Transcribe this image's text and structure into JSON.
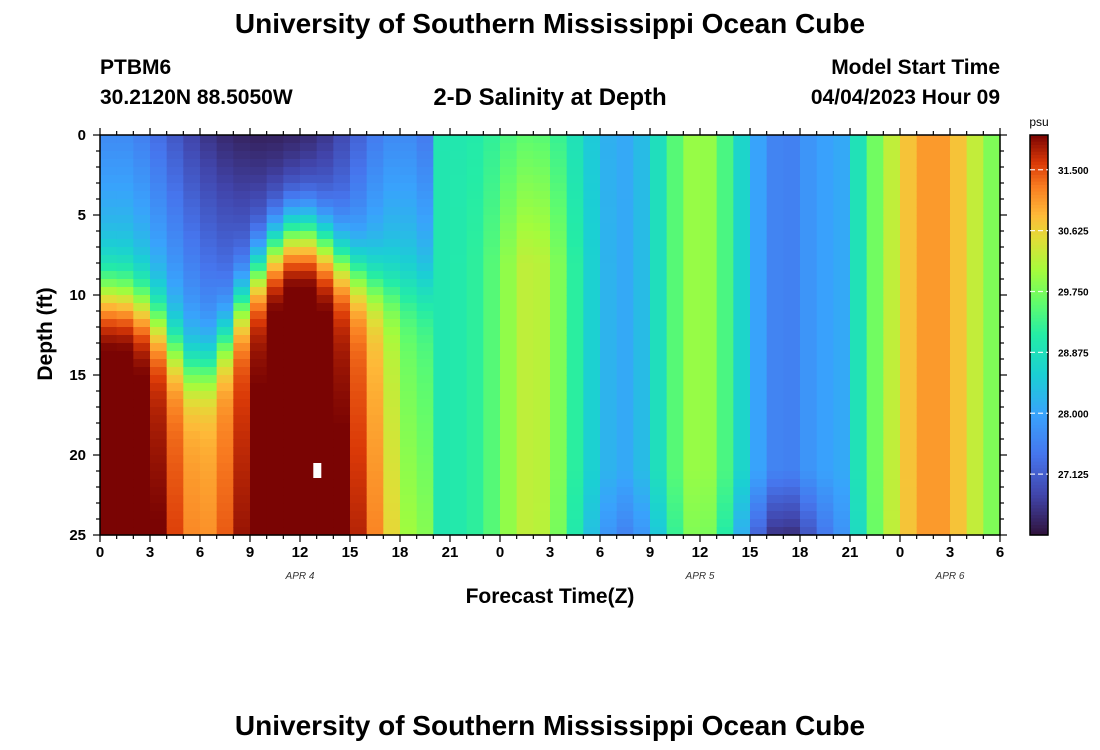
{
  "page_title": "University of Southern Mississippi Ocean Cube",
  "footer_title": "University of Southern Mississippi Ocean Cube",
  "station": {
    "id": "PTBM6",
    "coords": "30.2120N  88.5050W"
  },
  "plot_title": "2-D Salinity at Depth",
  "model_start": {
    "label": "Model Start Time",
    "value": "04/04/2023 Hour 09"
  },
  "chart_data": {
    "type": "heatmap",
    "title": "2-D Salinity at Depth",
    "xlabel": "Forecast Time(Z)",
    "ylabel": "Depth (ft)",
    "x_range_hours": [
      0,
      54
    ],
    "y_range_ft": [
      0,
      25
    ],
    "x_tick_labels": [
      "0",
      "3",
      "6",
      "9",
      "12",
      "15",
      "18",
      "21",
      "0",
      "3",
      "6",
      "9",
      "12",
      "15",
      "18",
      "21",
      "0",
      "3",
      "6"
    ],
    "y_tick_labels": [
      "0",
      "5",
      "10",
      "15",
      "20",
      "25"
    ],
    "date_labels": [
      {
        "text": "APR 4",
        "hour": 12
      },
      {
        "text": "APR 5",
        "hour": 36
      },
      {
        "text": "APR 6",
        "hour": 51
      }
    ],
    "colorbar": {
      "unit": "psu",
      "min": 26.25,
      "max": 32.0,
      "tick_values": [
        27.125,
        28.0,
        28.875,
        29.75,
        30.625,
        31.5
      ],
      "tick_labels": [
        "27.125",
        "28.000",
        "28.875",
        "29.750",
        "30.625",
        "31.500"
      ]
    },
    "field_features": [
      {
        "feature": "fresh surface layer",
        "hours": [
          0,
          18
        ],
        "depth_ft": [
          0,
          9
        ],
        "psu": 26.4
      },
      {
        "feature": "salty bottom layer",
        "hours": [
          0,
          4
        ],
        "depth_ft": [
          12,
          25
        ],
        "psu": 31.8
      },
      {
        "feature": "salty bottom core",
        "hours": [
          10,
          14
        ],
        "depth_ft": [
          15,
          24
        ],
        "psu": 32.0
      },
      {
        "feature": "salty column",
        "hours": [
          25,
          27
        ],
        "depth_ft": [
          8,
          25
        ],
        "psu": 30.4
      },
      {
        "feature": "fresh column",
        "hours": [
          30,
          32
        ],
        "depth_ft": [
          0,
          25
        ],
        "psu": 28.2
      },
      {
        "feature": "salty column",
        "hours": [
          35,
          37
        ],
        "depth_ft": [
          0,
          25
        ],
        "psu": 30.2
      },
      {
        "feature": "fresh column",
        "hours": [
          40,
          42
        ],
        "depth_ft": [
          0,
          25
        ],
        "psu": 27.5
      },
      {
        "feature": "salty column",
        "hours": [
          48,
          52
        ],
        "depth_ft": [
          0,
          25
        ],
        "psu": 31.0
      }
    ]
  }
}
